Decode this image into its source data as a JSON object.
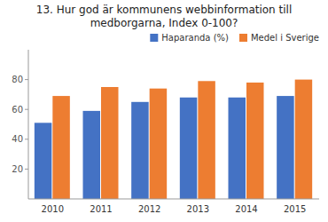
{
  "chart_data": {
    "type": "bar",
    "title": "13. Hur god är kommunens webbinformation till\nmedborgarna, Index 0-100?",
    "categories": [
      "2010",
      "2011",
      "2012",
      "2013",
      "2014",
      "2015"
    ],
    "series": [
      {
        "name": "Haparanda (%)",
        "color": "#4472C4",
        "values": [
          51,
          59,
          65,
          68,
          68,
          69
        ]
      },
      {
        "name": "Medel i Sverige",
        "color": "#ED7D31",
        "values": [
          69,
          75,
          74,
          79,
          78,
          80
        ]
      }
    ],
    "ylim": [
      0,
      100
    ],
    "yticks": [
      20,
      40,
      60,
      80
    ],
    "grid": false,
    "legend": "upper right"
  }
}
